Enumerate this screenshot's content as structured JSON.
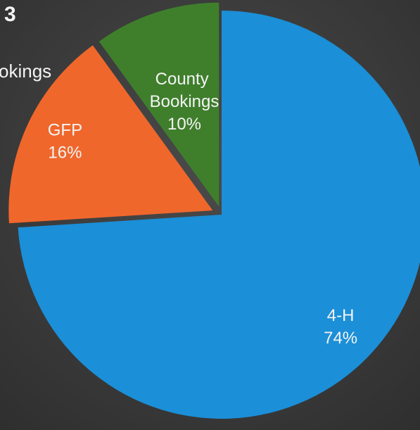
{
  "chart_data": {
    "type": "pie",
    "title": "3",
    "annotation": "okings",
    "categories": [
      "4-H",
      "GFP",
      "County Bookings"
    ],
    "values": [
      74,
      16,
      10
    ],
    "value_labels": [
      "74%",
      "16%",
      "10%"
    ],
    "colors": [
      "#1b8fd8",
      "#f0672c",
      "#3f7f2c"
    ]
  }
}
